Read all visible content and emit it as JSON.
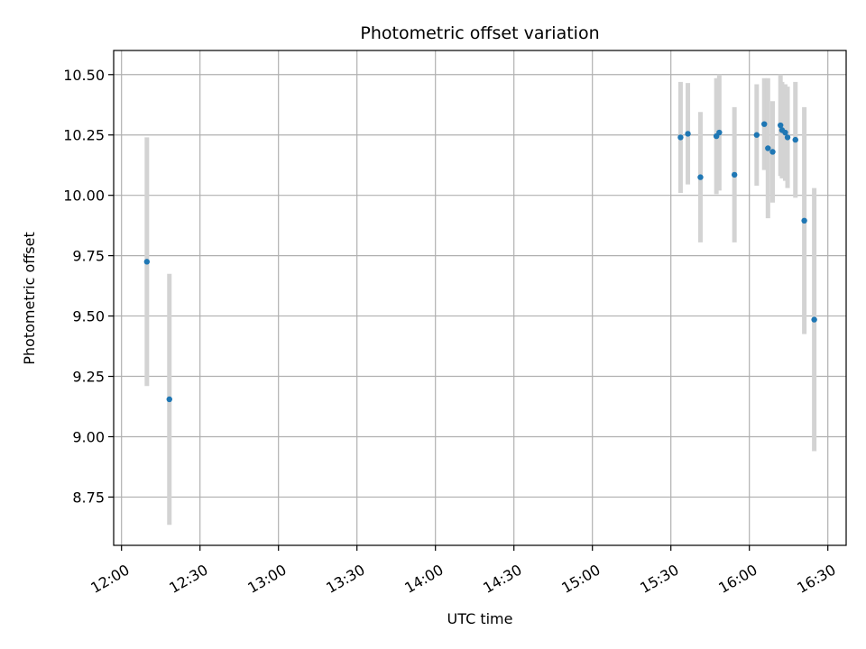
{
  "chart_data": {
    "type": "scatter",
    "title": "Photometric offset variation",
    "xlabel": "UTC time",
    "ylabel": "Photometric offset",
    "xlim": [
      "11:57",
      "16:37"
    ],
    "ylim": [
      8.55,
      10.6
    ],
    "x_ticks": [
      "12:00",
      "12:30",
      "13:00",
      "13:30",
      "14:00",
      "14:30",
      "15:00",
      "15:30",
      "16:00",
      "16:30"
    ],
    "y_ticks": [
      8.75,
      9.0,
      9.25,
      9.5,
      9.75,
      10.0,
      10.25,
      10.5
    ],
    "grid": true,
    "colors": {
      "points": "#1f77b4",
      "error_bars": "#d3d3d3"
    },
    "points": [
      {
        "t": "12:09.7",
        "y": 9.725,
        "err": 0.515
      },
      {
        "t": "12:18.3",
        "y": 9.155,
        "err": 0.52
      },
      {
        "t": "15:33.7",
        "y": 10.24,
        "err": 0.23
      },
      {
        "t": "15:36.5",
        "y": 10.255,
        "err": 0.21
      },
      {
        "t": "15:41.3",
        "y": 10.075,
        "err": 0.27
      },
      {
        "t": "15:47.4",
        "y": 10.245,
        "err": 0.24
      },
      {
        "t": "15:48.5",
        "y": 10.26,
        "err": 0.24
      },
      {
        "t": "15:54.3",
        "y": 10.085,
        "err": 0.28
      },
      {
        "t": "16:02.8",
        "y": 10.25,
        "err": 0.21
      },
      {
        "t": "16:05.7",
        "y": 10.295,
        "err": 0.19
      },
      {
        "t": "16:07.1",
        "y": 10.195,
        "err": 0.29
      },
      {
        "t": "16:08.9",
        "y": 10.18,
        "err": 0.21
      },
      {
        "t": "16:11.9",
        "y": 10.29,
        "err": 0.21
      },
      {
        "t": "16:12.5",
        "y": 10.27,
        "err": 0.2
      },
      {
        "t": "16:13.7",
        "y": 10.26,
        "err": 0.2
      },
      {
        "t": "16:14.6",
        "y": 10.24,
        "err": 0.21
      },
      {
        "t": "16:17.6",
        "y": 10.23,
        "err": 0.24
      },
      {
        "t": "16:21.0",
        "y": 9.895,
        "err": 0.47
      },
      {
        "t": "16:24.8",
        "y": 9.485,
        "err": 0.545
      }
    ]
  }
}
